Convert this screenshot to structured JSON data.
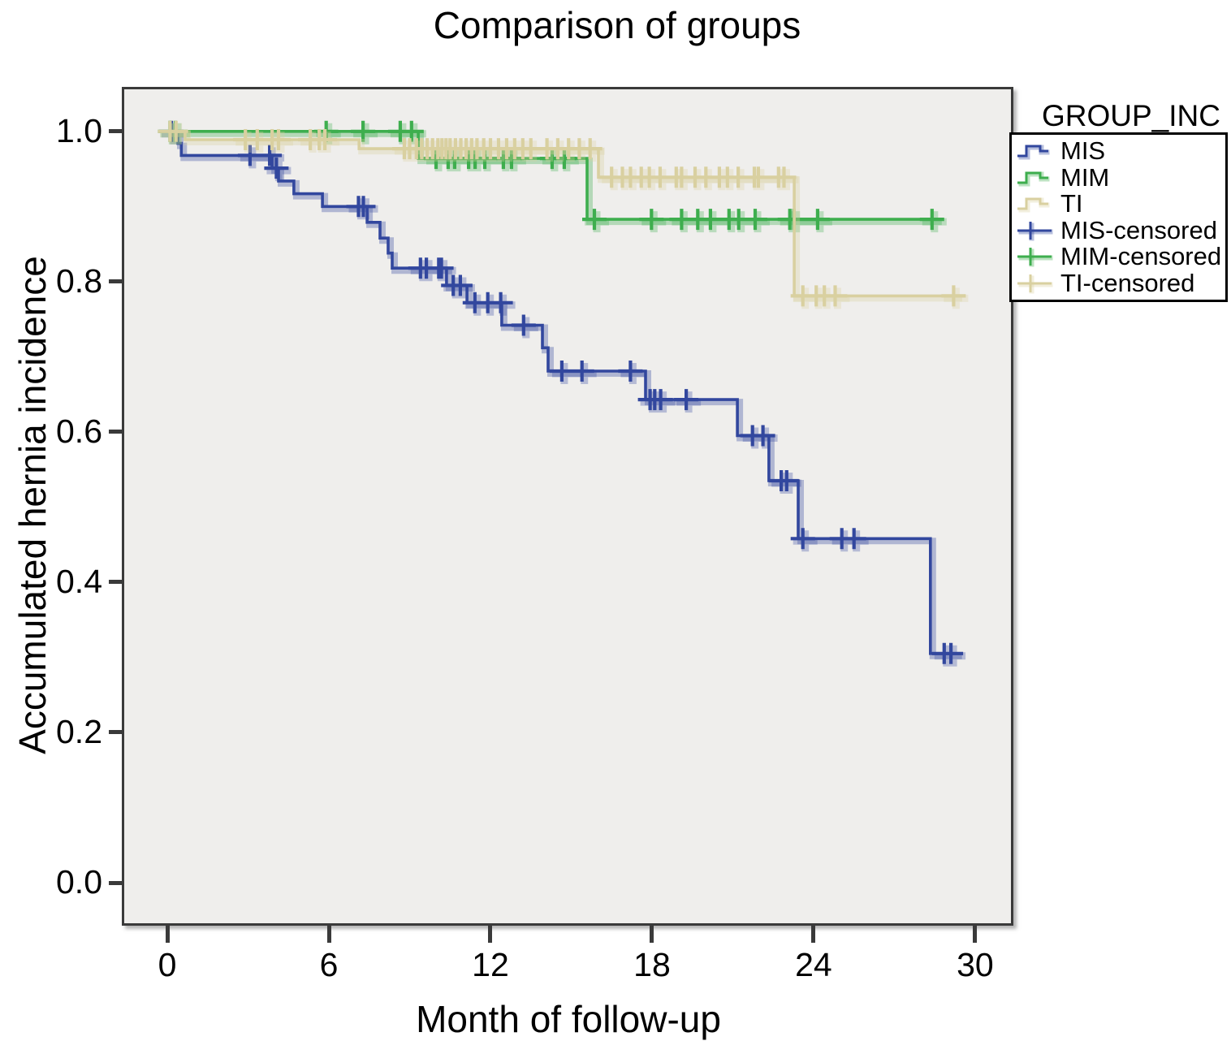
{
  "chart_data": {
    "type": "line",
    "variant": "kaplan_meier_step",
    "title": "Comparison of groups",
    "xlabel": "Month of follow-up",
    "ylabel": "Accumulated hernia incidence",
    "legend_title": "GROUP_INC",
    "legend_position": "right",
    "grid": false,
    "x_ticks": [
      "0",
      "6",
      "12",
      "18",
      "24",
      "30"
    ],
    "x_tick_values": [
      0,
      6,
      12,
      18,
      24,
      30
    ],
    "y_ticks": [
      "0.0",
      "0.2",
      "0.4",
      "0.6",
      "0.8",
      "1.0"
    ],
    "y_tick_values": [
      0.0,
      0.2,
      0.4,
      0.6,
      0.8,
      1.0
    ],
    "xlim": [
      -1.6,
      31.33
    ],
    "ylim": [
      -0.054,
      1.056
    ],
    "colors": {
      "plot_bg": "#efeeec",
      "axis": "#3a3a3a",
      "text": "#000000",
      "legend_border": "#000000",
      "mis": "#32479e",
      "mim": "#3eae4e",
      "ti": "#d9d0a0"
    },
    "series": [
      {
        "name": "MIS",
        "color": "#32479e",
        "steps": [
          [
            0,
            1.0
          ],
          [
            0.39,
            0.984
          ],
          [
            0.52,
            0.968
          ],
          [
            3.89,
            0.951
          ],
          [
            4.13,
            0.934
          ],
          [
            4.7,
            0.917
          ],
          [
            5.76,
            0.9
          ],
          [
            7.42,
            0.879
          ],
          [
            7.9,
            0.858
          ],
          [
            8.2,
            0.838
          ],
          [
            8.35,
            0.818
          ],
          [
            10.37,
            0.795
          ],
          [
            11.13,
            0.772
          ],
          [
            12.42,
            0.742
          ],
          [
            13.93,
            0.712
          ],
          [
            14.14,
            0.681
          ],
          [
            17.76,
            0.643
          ],
          [
            21.17,
            0.595
          ],
          [
            22.34,
            0.535
          ],
          [
            23.43,
            0.458
          ],
          [
            28.34,
            0.305
          ]
        ],
        "end": 29.42,
        "censored": [
          [
            0.15,
            1.0
          ],
          [
            3.07,
            0.968
          ],
          [
            3.8,
            0.968
          ],
          [
            4.05,
            0.951
          ],
          [
            7.1,
            0.9
          ],
          [
            7.28,
            0.9
          ],
          [
            9.4,
            0.818
          ],
          [
            9.62,
            0.818
          ],
          [
            10.08,
            0.818
          ],
          [
            10.18,
            0.818
          ],
          [
            10.62,
            0.795
          ],
          [
            10.88,
            0.795
          ],
          [
            11.42,
            0.772
          ],
          [
            11.9,
            0.772
          ],
          [
            12.38,
            0.772
          ],
          [
            13.23,
            0.742
          ],
          [
            14.65,
            0.681
          ],
          [
            15.4,
            0.681
          ],
          [
            17.2,
            0.681
          ],
          [
            17.93,
            0.643
          ],
          [
            18.1,
            0.643
          ],
          [
            18.32,
            0.643
          ],
          [
            19.27,
            0.643
          ],
          [
            21.73,
            0.595
          ],
          [
            22.12,
            0.595
          ],
          [
            22.8,
            0.535
          ],
          [
            23.0,
            0.535
          ],
          [
            23.6,
            0.458
          ],
          [
            25.05,
            0.458
          ],
          [
            25.5,
            0.458
          ],
          [
            28.85,
            0.305
          ],
          [
            29.1,
            0.305
          ]
        ]
      },
      {
        "name": "MIM",
        "color": "#3eae4e",
        "steps": [
          [
            0,
            1.0
          ],
          [
            9.32,
            0.964
          ],
          [
            15.59,
            0.883
          ]
        ],
        "end": 28.67,
        "censored": [
          [
            0.1,
            1.0
          ],
          [
            0.3,
            1.0
          ],
          [
            5.9,
            1.0
          ],
          [
            7.27,
            1.0
          ],
          [
            8.65,
            1.0
          ],
          [
            9.07,
            1.0
          ],
          [
            9.98,
            0.964
          ],
          [
            10.43,
            0.964
          ],
          [
            10.67,
            0.964
          ],
          [
            11.19,
            0.964
          ],
          [
            11.43,
            0.964
          ],
          [
            11.79,
            0.964
          ],
          [
            12.48,
            0.964
          ],
          [
            12.78,
            0.964
          ],
          [
            14.29,
            0.964
          ],
          [
            14.74,
            0.964
          ],
          [
            15.86,
            0.883
          ],
          [
            17.98,
            0.883
          ],
          [
            19.1,
            0.883
          ],
          [
            19.7,
            0.883
          ],
          [
            20.17,
            0.883
          ],
          [
            20.86,
            0.883
          ],
          [
            21.22,
            0.883
          ],
          [
            21.83,
            0.883
          ],
          [
            23.12,
            0.883
          ],
          [
            23.27,
            0.883
          ],
          [
            24.15,
            0.883
          ],
          [
            28.4,
            0.883
          ]
        ]
      },
      {
        "name": "TI",
        "color": "#d9d0a0",
        "steps": [
          [
            0,
            1.0
          ],
          [
            0.66,
            0.989
          ],
          [
            7.12,
            0.977
          ],
          [
            16.01,
            0.939
          ],
          [
            23.28,
            0.781
          ]
        ],
        "end": 29.43,
        "censored": [
          [
            0.1,
            1.0
          ],
          [
            0.32,
            1.0
          ],
          [
            2.9,
            0.989
          ],
          [
            3.34,
            0.989
          ],
          [
            3.89,
            0.989
          ],
          [
            4.13,
            0.989
          ],
          [
            5.31,
            0.989
          ],
          [
            5.64,
            0.989
          ],
          [
            5.85,
            0.989
          ],
          [
            8.8,
            0.977
          ],
          [
            9.0,
            0.977
          ],
          [
            9.25,
            0.977
          ],
          [
            9.45,
            0.977
          ],
          [
            9.65,
            0.977
          ],
          [
            9.85,
            0.977
          ],
          [
            10.05,
            0.977
          ],
          [
            10.2,
            0.977
          ],
          [
            10.35,
            0.977
          ],
          [
            10.5,
            0.977
          ],
          [
            10.7,
            0.977
          ],
          [
            10.9,
            0.977
          ],
          [
            11.1,
            0.977
          ],
          [
            11.3,
            0.977
          ],
          [
            11.5,
            0.977
          ],
          [
            11.75,
            0.977
          ],
          [
            12.0,
            0.977
          ],
          [
            12.3,
            0.977
          ],
          [
            12.6,
            0.977
          ],
          [
            12.9,
            0.977
          ],
          [
            13.2,
            0.977
          ],
          [
            13.5,
            0.977
          ],
          [
            14.1,
            0.977
          ],
          [
            14.5,
            0.977
          ],
          [
            14.9,
            0.977
          ],
          [
            15.3,
            0.977
          ],
          [
            15.7,
            0.977
          ],
          [
            16.5,
            0.939
          ],
          [
            16.9,
            0.939
          ],
          [
            17.2,
            0.939
          ],
          [
            17.6,
            0.939
          ],
          [
            17.9,
            0.939
          ],
          [
            18.3,
            0.939
          ],
          [
            18.9,
            0.939
          ],
          [
            19.1,
            0.939
          ],
          [
            19.6,
            0.939
          ],
          [
            20.0,
            0.939
          ],
          [
            20.5,
            0.939
          ],
          [
            20.8,
            0.939
          ],
          [
            21.2,
            0.939
          ],
          [
            21.8,
            0.939
          ],
          [
            21.95,
            0.939
          ],
          [
            22.7,
            0.939
          ],
          [
            22.9,
            0.939
          ],
          [
            23.6,
            0.781
          ],
          [
            24.1,
            0.781
          ],
          [
            24.4,
            0.781
          ],
          [
            24.8,
            0.781
          ],
          [
            29.2,
            0.781
          ]
        ]
      }
    ],
    "legend_entries": [
      {
        "label": "MIS",
        "series": "MIS",
        "glyph": "step-line"
      },
      {
        "label": "MIM",
        "series": "MIM",
        "glyph": "step-line"
      },
      {
        "label": "TI",
        "series": "TI",
        "glyph": "step-line"
      },
      {
        "label": "MIS-censored",
        "series": "MIS",
        "glyph": "plus"
      },
      {
        "label": "MIM-censored",
        "series": "MIM",
        "glyph": "plus"
      },
      {
        "label": "TI-censored",
        "series": "TI",
        "glyph": "plus"
      }
    ]
  }
}
